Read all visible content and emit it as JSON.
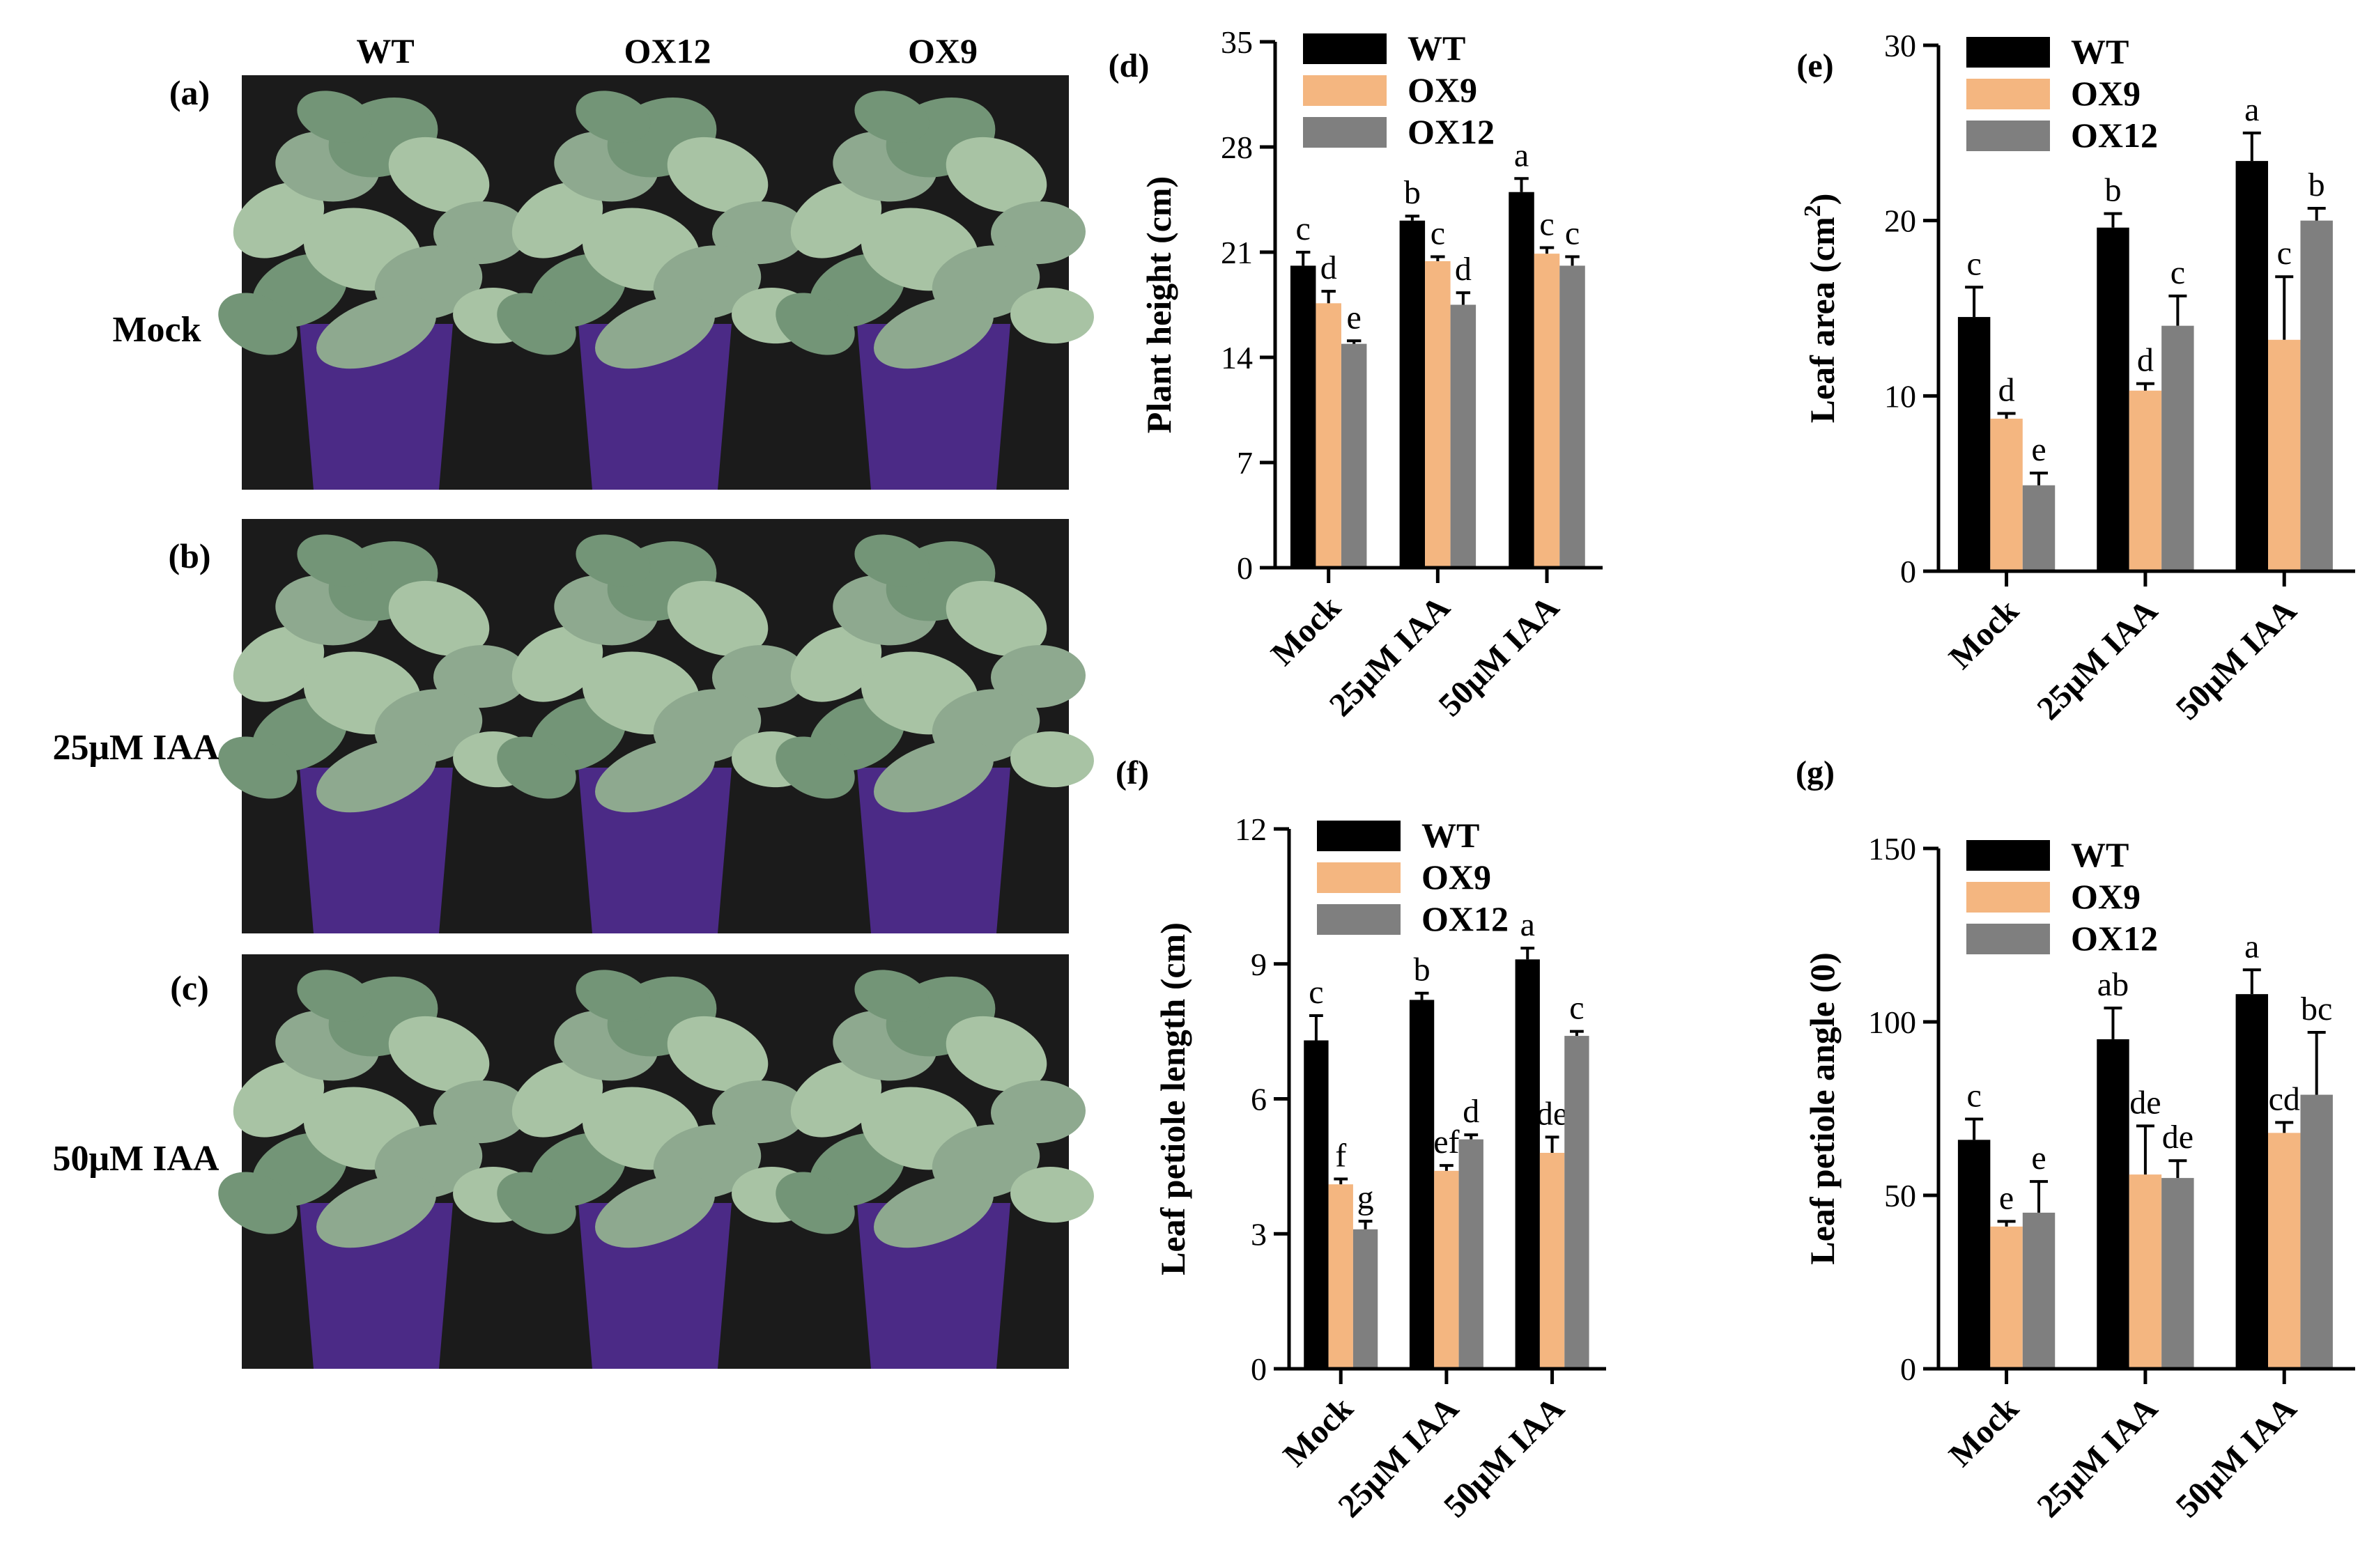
{
  "figure": {
    "photo_panels": {
      "column_headers": [
        "WT",
        "OX12",
        "OX9"
      ],
      "panels": [
        {
          "label": "(a)",
          "row_label": "Mock"
        },
        {
          "label": "(b)",
          "row_label": "25μM IAA"
        },
        {
          "label": "(c)",
          "row_label": "50μM IAA"
        }
      ]
    }
  },
  "colors": {
    "WT": "#000000",
    "OX9": "#f4b680",
    "OX12": "#7f7f7f",
    "photo_bg": "#1b1b1b",
    "pot": "#4b2a86",
    "leaf": "#8ea98f"
  },
  "chart_data": [
    {
      "type": "bar",
      "panel_label": "(d)",
      "ylabel": "Plant height (cm)",
      "ylim": [
        0,
        35
      ],
      "yticks": [
        0,
        7,
        14,
        21,
        28,
        35
      ],
      "categories": [
        "Mock",
        "25μM IAA",
        "50μM IAA"
      ],
      "legend": [
        "WT",
        "OX9",
        "OX12"
      ],
      "series": [
        {
          "name": "WT",
          "values": [
            20.1,
            23.1,
            25.0
          ],
          "errors": [
            0.9,
            0.3,
            0.9
          ],
          "letters": [
            "c",
            "b",
            "a"
          ]
        },
        {
          "name": "OX9",
          "values": [
            17.6,
            20.4,
            20.9
          ],
          "errors": [
            0.8,
            0.3,
            0.4
          ],
          "letters": [
            "d",
            "c",
            "c"
          ]
        },
        {
          "name": "OX12",
          "values": [
            14.9,
            17.5,
            20.1
          ],
          "errors": [
            0.2,
            0.8,
            0.6
          ],
          "letters": [
            "e",
            "d",
            "c"
          ]
        }
      ]
    },
    {
      "type": "bar",
      "panel_label": "(e)",
      "ylabel": "Leaf area (cm",
      "ylabel_sup": "2",
      "ylabel_close": ")",
      "ylim": [
        0,
        30
      ],
      "yticks": [
        0,
        10,
        20,
        30
      ],
      "categories": [
        "Mock",
        "25μM IAA",
        "50μM IAA"
      ],
      "legend": [
        "WT",
        "OX9",
        "OX12"
      ],
      "series": [
        {
          "name": "WT",
          "values": [
            14.5,
            19.6,
            23.4
          ],
          "errors": [
            1.7,
            0.8,
            1.6
          ],
          "letters": [
            "c",
            "b",
            "a"
          ]
        },
        {
          "name": "OX9",
          "values": [
            8.7,
            10.3,
            13.2
          ],
          "errors": [
            0.3,
            0.4,
            3.6
          ],
          "letters": [
            "d",
            "d",
            "c"
          ]
        },
        {
          "name": "OX12",
          "values": [
            4.9,
            14.0,
            20.0
          ],
          "errors": [
            0.7,
            1.7,
            0.7
          ],
          "letters": [
            "e",
            "c",
            "b"
          ]
        }
      ]
    },
    {
      "type": "bar",
      "panel_label": "(f)",
      "ylabel": "Leaf petiole length (cm)",
      "ylim": [
        0,
        12
      ],
      "yticks": [
        0,
        3,
        6,
        9,
        12
      ],
      "categories": [
        "Mock",
        "25μM IAA",
        "50μM IAA"
      ],
      "legend": [
        "WT",
        "OX9",
        "OX12"
      ],
      "series": [
        {
          "name": "WT",
          "values": [
            7.3,
            8.2,
            9.1
          ],
          "errors": [
            0.55,
            0.15,
            0.25
          ],
          "letters": [
            "c",
            "b",
            "a"
          ]
        },
        {
          "name": "OX9",
          "values": [
            4.1,
            4.4,
            4.8
          ],
          "errors": [
            0.12,
            0.12,
            0.35
          ],
          "letters": [
            "f",
            "ef",
            "de"
          ]
        },
        {
          "name": "OX12",
          "values": [
            3.1,
            5.1,
            7.4
          ],
          "errors": [
            0.18,
            0.1,
            0.1
          ],
          "letters": [
            "g",
            "d",
            "c"
          ]
        }
      ]
    },
    {
      "type": "bar",
      "panel_label": "(g)",
      "ylabel": "Leaf petiole angle (0)",
      "ylim": [
        0,
        150
      ],
      "yticks": [
        0,
        50,
        100,
        150
      ],
      "categories": [
        "Mock",
        "25μM IAA",
        "50μM IAA"
      ],
      "legend": [
        "WT",
        "OX9",
        "OX12"
      ],
      "series": [
        {
          "name": "WT",
          "values": [
            66,
            95,
            108
          ],
          "errors": [
            6,
            9,
            7
          ],
          "letters": [
            "c",
            "ab",
            "a"
          ]
        },
        {
          "name": "OX9",
          "values": [
            41,
            56,
            68
          ],
          "errors": [
            1.5,
            14,
            3
          ],
          "letters": [
            "e",
            "de",
            "cd"
          ]
        },
        {
          "name": "OX12",
          "values": [
            45,
            55,
            79
          ],
          "errors": [
            9,
            5,
            18
          ],
          "letters": [
            "e",
            "de",
            "bc"
          ]
        }
      ]
    }
  ]
}
